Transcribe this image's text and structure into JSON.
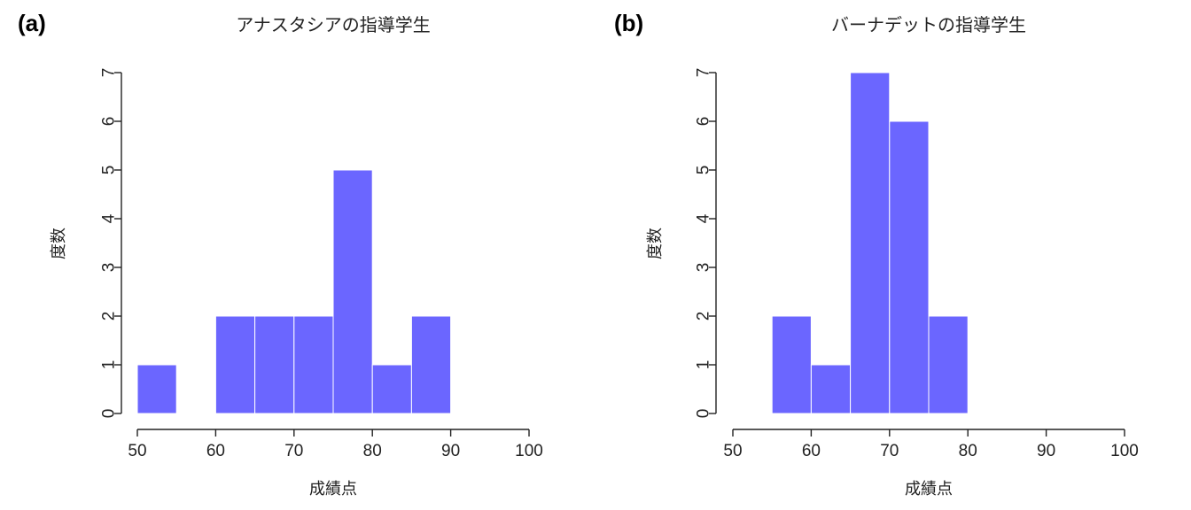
{
  "chart_data": [
    {
      "type": "bar",
      "panel": "(a)",
      "title": "アナスタシアの指導学生",
      "xlabel": "成績点",
      "ylabel": "度数",
      "bin_edges": [
        50,
        55,
        60,
        65,
        70,
        75,
        80,
        85,
        90
      ],
      "values": [
        1,
        0,
        2,
        2,
        2,
        5,
        1,
        2
      ],
      "xlim": [
        50,
        100
      ],
      "ylim": [
        0,
        7
      ],
      "xticks": [
        50,
        60,
        70,
        80,
        90,
        100
      ],
      "yticks": [
        0,
        1,
        2,
        3,
        4,
        5,
        6,
        7
      ],
      "bar_color": "#6b66ff",
      "grid": false
    },
    {
      "type": "bar",
      "panel": "(b)",
      "title": "バーナデットの指導学生",
      "xlabel": "成績点",
      "ylabel": "度数",
      "bin_edges": [
        55,
        60,
        65,
        70,
        75,
        80
      ],
      "values": [
        2,
        1,
        7,
        6,
        2
      ],
      "xlim": [
        50,
        100
      ],
      "ylim": [
        0,
        7
      ],
      "xticks": [
        50,
        60,
        70,
        80,
        90,
        100
      ],
      "yticks": [
        0,
        1,
        2,
        3,
        4,
        5,
        6,
        7
      ],
      "bar_color": "#6b66ff",
      "grid": false
    }
  ]
}
